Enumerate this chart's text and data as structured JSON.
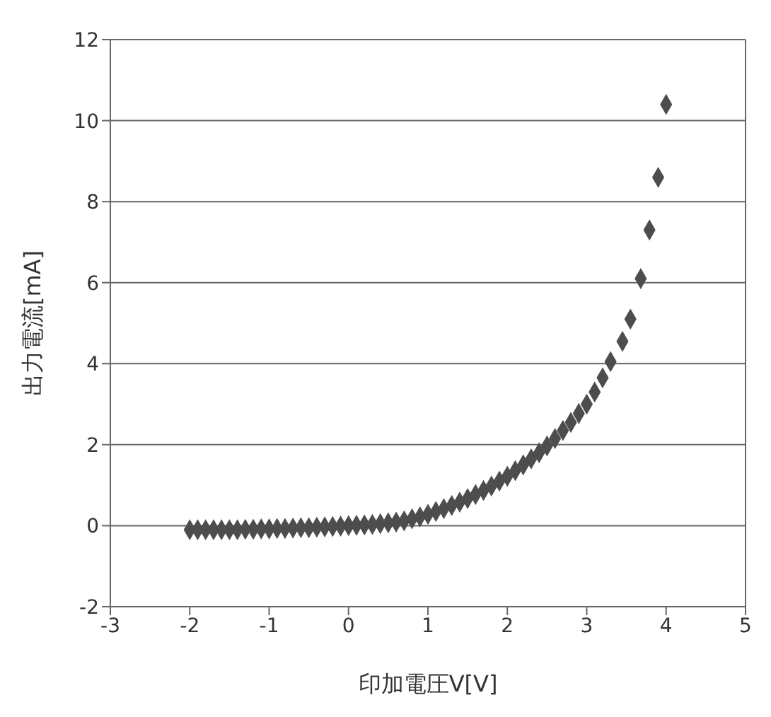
{
  "chart_data": {
    "type": "scatter",
    "xlabel": "印加電圧V[V]",
    "ylabel": "出力電流[mA]",
    "xlim": [
      -3,
      5
    ],
    "xticks": [
      -3,
      -2,
      -1,
      0,
      1,
      2,
      3,
      4,
      5
    ],
    "ylim": [
      -2,
      12
    ],
    "yticks": [
      -2,
      0,
      2,
      4,
      6,
      8,
      10,
      12
    ],
    "grid": "y",
    "marker": "diamond",
    "series": [
      {
        "color": "#4d4d4d",
        "x": [
          -2.0,
          -1.9,
          -1.8,
          -1.7,
          -1.6,
          -1.5,
          -1.4,
          -1.3,
          -1.2,
          -1.1,
          -1.0,
          -0.9,
          -0.8,
          -0.7,
          -0.6,
          -0.5,
          -0.4,
          -0.3,
          -0.2,
          -0.1,
          0.0,
          0.1,
          0.2,
          0.3,
          0.4,
          0.5,
          0.6,
          0.7,
          0.8,
          0.9,
          1.0,
          1.1,
          1.2,
          1.3,
          1.4,
          1.5,
          1.6,
          1.7,
          1.8,
          1.9,
          2.0,
          2.1,
          2.2,
          2.3,
          2.4,
          2.5,
          2.6,
          2.7,
          2.8,
          2.9,
          3.0,
          3.1,
          3.2,
          3.3,
          3.45,
          3.55,
          3.68,
          3.79,
          3.9,
          4.0
        ],
        "values": [
          -0.1,
          -0.1,
          -0.1,
          -0.1,
          -0.1,
          -0.1,
          -0.1,
          -0.09,
          -0.09,
          -0.08,
          -0.08,
          -0.07,
          -0.07,
          -0.06,
          -0.05,
          -0.05,
          -0.04,
          -0.03,
          -0.02,
          -0.01,
          0.0,
          0.01,
          0.02,
          0.03,
          0.05,
          0.07,
          0.09,
          0.12,
          0.17,
          0.22,
          0.28,
          0.35,
          0.42,
          0.5,
          0.58,
          0.67,
          0.77,
          0.87,
          0.98,
          1.1,
          1.22,
          1.36,
          1.5,
          1.65,
          1.8,
          1.97,
          2.15,
          2.35,
          2.55,
          2.77,
          3.0,
          3.3,
          3.65,
          4.05,
          4.55,
          5.1,
          6.1,
          7.3,
          8.6,
          10.4
        ]
      }
    ]
  }
}
